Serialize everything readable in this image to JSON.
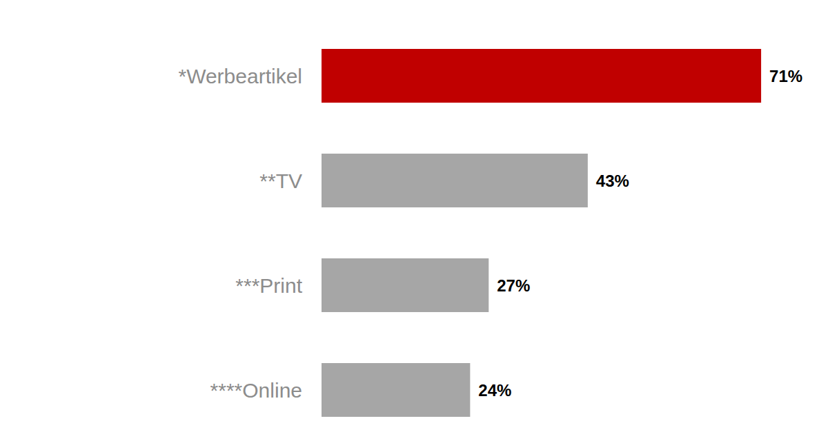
{
  "chart_data": {
    "type": "bar",
    "orientation": "horizontal",
    "categories": [
      "*Werbeartikel",
      "**TV",
      "***Print",
      "****Online"
    ],
    "values": [
      71,
      43,
      27,
      24
    ],
    "value_labels": [
      "71%",
      "43%",
      "27%",
      "24%"
    ],
    "colors": [
      "#c00000",
      "#a6a6a6",
      "#a6a6a6",
      "#a6a6a6"
    ],
    "xlim": [
      0,
      75
    ],
    "data_labels": true,
    "tick_labels": "y",
    "grid": false
  }
}
